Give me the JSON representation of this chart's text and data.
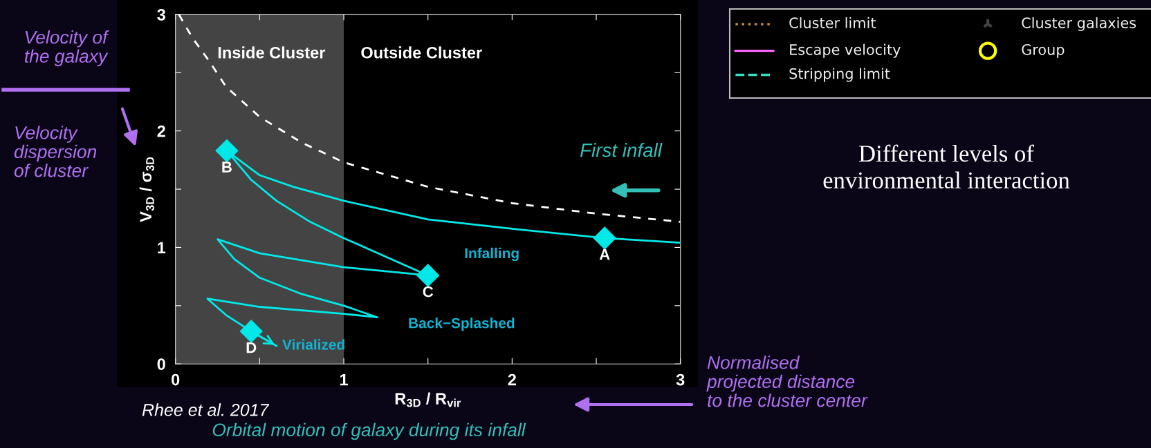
{
  "chart_data": [
    {
      "type": "line",
      "xlabel": "R$_{3D}$ / R$_{vir}$",
      "ylabel": "V$_{3D}$ / σ$_{3D}$",
      "xlim": [
        0,
        3
      ],
      "ylim": [
        0,
        3
      ],
      "xticks": [
        0,
        {
          "value": 0.5,
          "label": null
        },
        1,
        {
          "value": 1.5,
          "label": null
        },
        2,
        {
          "value": 2.5,
          "label": null
        },
        3
      ],
      "yticks": [
        0,
        {
          "value": 0.5,
          "label": null
        },
        1,
        {
          "value": 1.5,
          "label": null
        },
        2,
        {
          "value": 2.5,
          "label": null
        },
        3
      ],
      "grid": false,
      "bands": [
        {
          "axis": "x",
          "from": 0,
          "to": 1,
          "label": "Inside Cluster",
          "color": "#444444"
        }
      ],
      "series": [
        {
          "type": "line",
          "color": "#ffffff",
          "line_style": "dashed",
          "x": [
            0.02,
            0.1,
            0.2,
            0.3,
            0.5,
            0.75,
            1,
            1.5,
            2,
            2.5,
            3
          ],
          "values": [
            3.0,
            2.8,
            2.6,
            2.38,
            2.12,
            1.9,
            1.73,
            1.52,
            1.38,
            1.29,
            1.22
          ]
        },
        {
          "type": "line",
          "color": "#00e8e8",
          "line_style": "solid",
          "x": [
            3,
            2.55,
            2,
            1.5,
            1,
            0.7,
            0.5,
            0.305,
            0.45,
            0.6,
            0.8,
            1,
            1.25,
            1.5,
            1,
            0.5,
            0.25,
            0.35,
            0.5,
            0.75,
            1,
            1.2,
            1,
            0.5,
            0.19,
            0.3,
            0.45,
            0.6
          ],
          "values": [
            1.04,
            1.08,
            1.16,
            1.24,
            1.4,
            1.52,
            1.62,
            1.83,
            1.58,
            1.4,
            1.22,
            1.08,
            0.92,
            0.76,
            0.83,
            0.95,
            1.07,
            0.9,
            0.74,
            0.6,
            0.5,
            0.4,
            0.43,
            0.49,
            0.56,
            0.42,
            0.28,
            0.155
          ]
        },
        {
          "type": "scatter",
          "color": "#00e8e8",
          "marker": "diamond",
          "x": [
            2.55,
            0.305,
            1.5,
            0.45
          ],
          "values": [
            1.08,
            1.83,
            0.76,
            0.28
          ],
          "value_labels": [
            "A",
            "B",
            "C",
            "D"
          ]
        }
      ],
      "annotations": [
        "Outside Cluster",
        "First infall",
        "Infalling",
        "Back−Splashed",
        {
          "text": "Virialized",
          "x": 0.6,
          "y": 0.155
        },
        "Velocity of\nthe galaxy",
        "Velocity\ndispersion\nof cluster",
        "Rhee et al. 2017",
        "Normalised\nprojected distance\nto the cluster center",
        "Orbital motion of galaxy during its infall"
      ]
    },
    {
      "type": "other",
      "annotations": [
        "Cluster limit",
        "Escape velocity",
        "Stripping limit",
        "Cluster galaxies",
        "Group",
        "Different levels of\nenvironmental interaction"
      ]
    }
  ]
}
